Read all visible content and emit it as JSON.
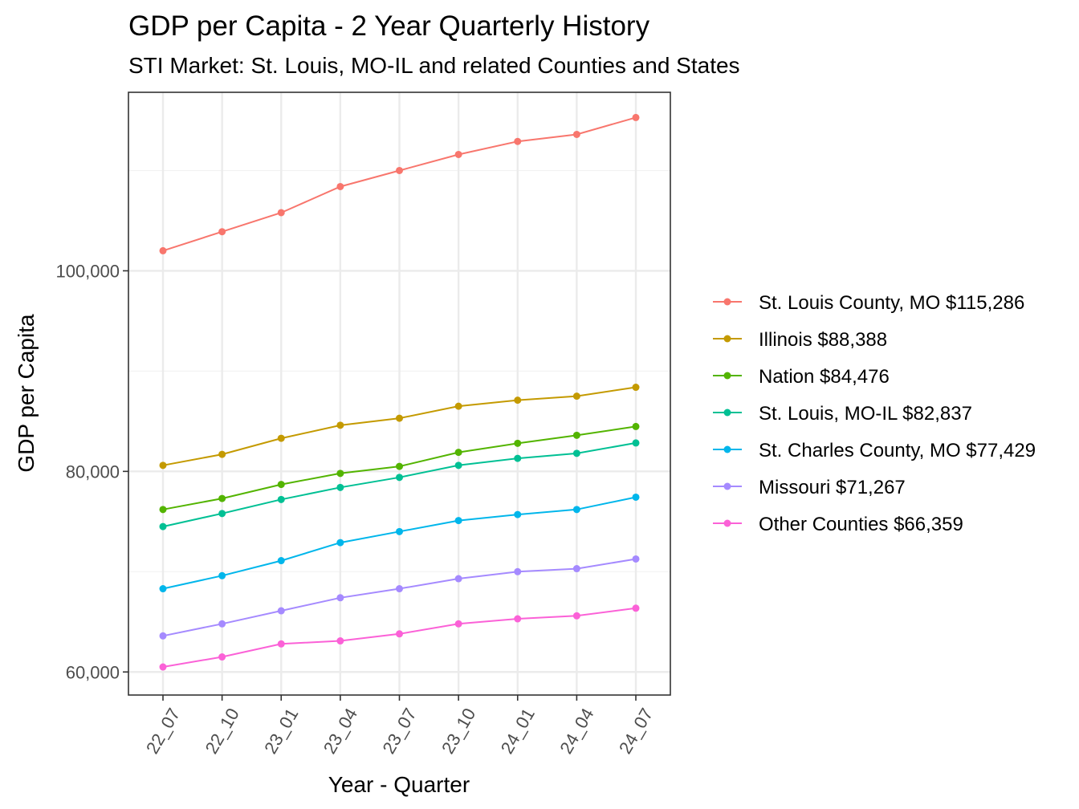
{
  "chart_data": {
    "type": "line",
    "title": "GDP per Capita - 2 Year Quarterly History",
    "subtitle": "STI Market: St. Louis, MO-IL and related Counties and States",
    "xlabel": "Year - Quarter",
    "ylabel": "GDP per Capita",
    "categories": [
      "22_07",
      "22_10",
      "23_01",
      "23_04",
      "23_07",
      "23_10",
      "24_01",
      "24_04",
      "24_07"
    ],
    "ylim": [
      57700,
      117800
    ],
    "yticks": [
      60000,
      80000,
      100000
    ],
    "ytick_labels": [
      "60,000",
      "80,000",
      "100,000"
    ],
    "minor_yticks": [
      70000,
      90000,
      110000
    ],
    "grid": true,
    "legend_position": "right",
    "series": [
      {
        "name": "St. Louis County, MO $115,286",
        "color": "#F8766D",
        "values": [
          102000,
          103900,
          105800,
          108400,
          110000,
          111600,
          112900,
          113600,
          115286
        ]
      },
      {
        "name": "Illinois $88,388",
        "color": "#C49A00",
        "values": [
          80600,
          81700,
          83300,
          84600,
          85300,
          86500,
          87100,
          87500,
          88388
        ]
      },
      {
        "name": "Nation $84,476",
        "color": "#53B400",
        "values": [
          76200,
          77300,
          78700,
          79800,
          80500,
          81900,
          82800,
          83600,
          84476
        ]
      },
      {
        "name": "St. Louis, MO-IL $82,837",
        "color": "#00C094",
        "values": [
          74500,
          75800,
          77200,
          78400,
          79400,
          80600,
          81300,
          81800,
          82837
        ]
      },
      {
        "name": "St. Charles County, MO $77,429",
        "color": "#00B6EB",
        "values": [
          68300,
          69600,
          71100,
          72900,
          74000,
          75100,
          75700,
          76200,
          77429
        ]
      },
      {
        "name": "Missouri $71,267",
        "color": "#A58AFF",
        "values": [
          63600,
          64800,
          66100,
          67400,
          68300,
          69300,
          70000,
          70300,
          71267
        ]
      },
      {
        "name": "Other Counties $66,359",
        "color": "#FB61D7",
        "values": [
          60500,
          61500,
          62800,
          63100,
          63800,
          64800,
          65300,
          65600,
          66359
        ]
      }
    ]
  }
}
